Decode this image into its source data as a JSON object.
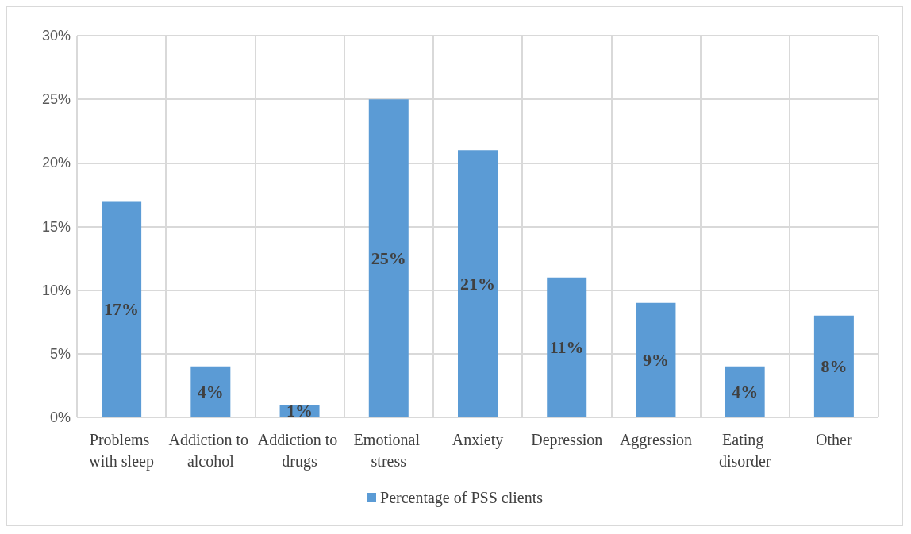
{
  "chart_data": {
    "type": "bar",
    "categories": [
      "Problems with sleep",
      "Addiction to alcohol",
      "Addiction to drugs",
      "Emotional stress",
      "Anxiety",
      "Depression",
      "Aggression",
      "Eating disorder",
      "Other"
    ],
    "series": [
      {
        "name": "Percentage of PSS clients",
        "color": "#5b9bd5",
        "values": [
          17,
          4,
          1,
          25,
          21,
          11,
          9,
          4,
          8
        ]
      }
    ],
    "value_labels": [
      "17%",
      "4%",
      "1%",
      "25%",
      "21%",
      "11%",
      "9%",
      "4%",
      "8%"
    ],
    "ylim": [
      0,
      30
    ],
    "yticks": [
      {
        "value": 0,
        "label": "0%"
      },
      {
        "value": 5,
        "label": "5%"
      },
      {
        "value": 10,
        "label": "10%"
      },
      {
        "value": 15,
        "label": "15%"
      },
      {
        "value": 20,
        "label": "20%"
      },
      {
        "value": 25,
        "label": "25%"
      },
      {
        "value": 30,
        "label": "30%"
      }
    ],
    "grid": true,
    "legend": "bottom"
  }
}
